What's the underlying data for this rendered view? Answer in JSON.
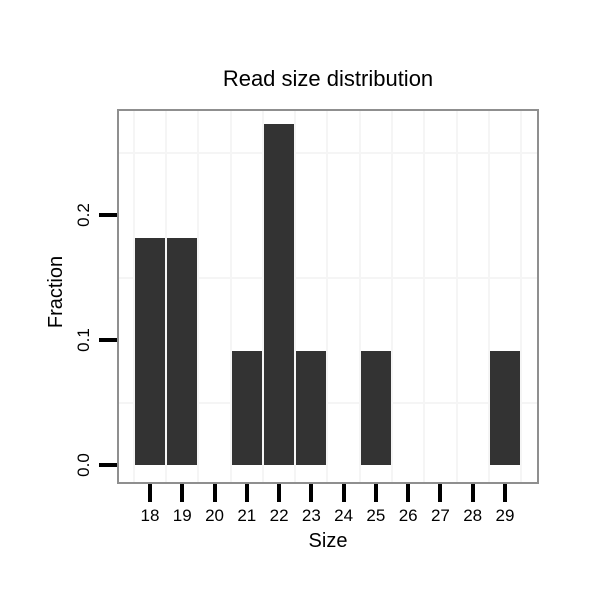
{
  "chart_data": {
    "type": "bar",
    "title": "Read size distribution",
    "xlabel": "Size",
    "ylabel": "Fraction",
    "categories": [
      18,
      19,
      20,
      21,
      22,
      23,
      24,
      25,
      26,
      27,
      28,
      29
    ],
    "values": [
      0.1818,
      0.1818,
      0,
      0.0909,
      0.2727,
      0.0909,
      0,
      0.0909,
      0,
      0,
      0,
      0.0909
    ],
    "y_ticks": [
      {
        "label": "0.0",
        "value": 0.0
      },
      {
        "label": "0.1",
        "value": 0.1
      },
      {
        "label": "0.2",
        "value": 0.2
      }
    ],
    "minor_gridlines_y": [
      0.05,
      0.15,
      0.25
    ],
    "ylim": [
      -0.014,
      0.283
    ],
    "grid": "minor gridlines only (between ticks), vertical and horizontal",
    "legend": "none",
    "colors": {
      "bar": "#333333",
      "panel_border": "#8f8f8f",
      "grid": "#f5f5f5",
      "tick": "#000000",
      "text": "#000000",
      "background": "#ffffff"
    }
  }
}
